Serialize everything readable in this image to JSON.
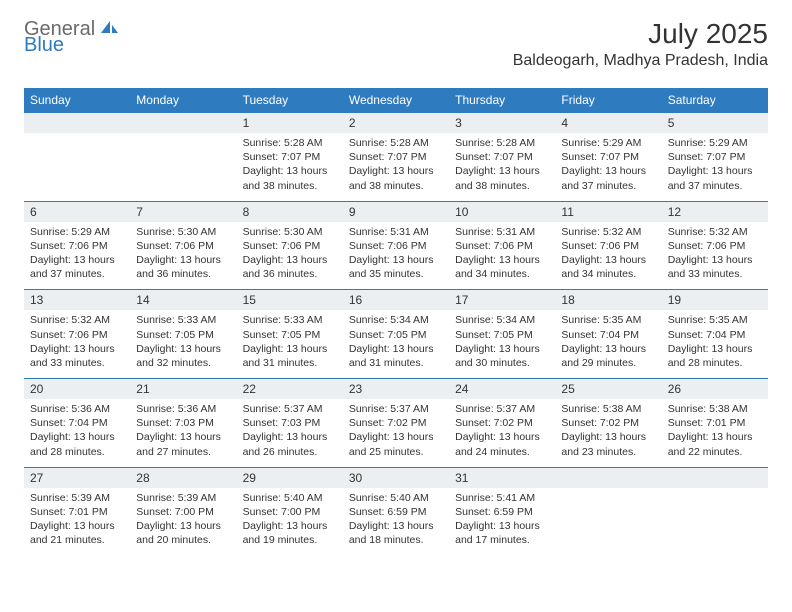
{
  "logo": {
    "general": "General",
    "blue": "Blue"
  },
  "title": "July 2025",
  "location": "Baldeogarh, Madhya Pradesh, India",
  "colors": {
    "brand_blue": "#2f7bbf",
    "header_text": "#ffffff",
    "daynum_bg": "#eceff1",
    "text": "#333333",
    "logo_gray": "#6a6a6a"
  },
  "day_headers": [
    "Sunday",
    "Monday",
    "Tuesday",
    "Wednesday",
    "Thursday",
    "Friday",
    "Saturday"
  ],
  "weeks": [
    {
      "nums": [
        "",
        "",
        "1",
        "2",
        "3",
        "4",
        "5"
      ],
      "details": [
        "",
        "",
        "Sunrise: 5:28 AM\nSunset: 7:07 PM\nDaylight: 13 hours and 38 minutes.",
        "Sunrise: 5:28 AM\nSunset: 7:07 PM\nDaylight: 13 hours and 38 minutes.",
        "Sunrise: 5:28 AM\nSunset: 7:07 PM\nDaylight: 13 hours and 38 minutes.",
        "Sunrise: 5:29 AM\nSunset: 7:07 PM\nDaylight: 13 hours and 37 minutes.",
        "Sunrise: 5:29 AM\nSunset: 7:07 PM\nDaylight: 13 hours and 37 minutes."
      ]
    },
    {
      "nums": [
        "6",
        "7",
        "8",
        "9",
        "10",
        "11",
        "12"
      ],
      "details": [
        "Sunrise: 5:29 AM\nSunset: 7:06 PM\nDaylight: 13 hours and 37 minutes.",
        "Sunrise: 5:30 AM\nSunset: 7:06 PM\nDaylight: 13 hours and 36 minutes.",
        "Sunrise: 5:30 AM\nSunset: 7:06 PM\nDaylight: 13 hours and 36 minutes.",
        "Sunrise: 5:31 AM\nSunset: 7:06 PM\nDaylight: 13 hours and 35 minutes.",
        "Sunrise: 5:31 AM\nSunset: 7:06 PM\nDaylight: 13 hours and 34 minutes.",
        "Sunrise: 5:32 AM\nSunset: 7:06 PM\nDaylight: 13 hours and 34 minutes.",
        "Sunrise: 5:32 AM\nSunset: 7:06 PM\nDaylight: 13 hours and 33 minutes."
      ]
    },
    {
      "nums": [
        "13",
        "14",
        "15",
        "16",
        "17",
        "18",
        "19"
      ],
      "details": [
        "Sunrise: 5:32 AM\nSunset: 7:06 PM\nDaylight: 13 hours and 33 minutes.",
        "Sunrise: 5:33 AM\nSunset: 7:05 PM\nDaylight: 13 hours and 32 minutes.",
        "Sunrise: 5:33 AM\nSunset: 7:05 PM\nDaylight: 13 hours and 31 minutes.",
        "Sunrise: 5:34 AM\nSunset: 7:05 PM\nDaylight: 13 hours and 31 minutes.",
        "Sunrise: 5:34 AM\nSunset: 7:05 PM\nDaylight: 13 hours and 30 minutes.",
        "Sunrise: 5:35 AM\nSunset: 7:04 PM\nDaylight: 13 hours and 29 minutes.",
        "Sunrise: 5:35 AM\nSunset: 7:04 PM\nDaylight: 13 hours and 28 minutes."
      ]
    },
    {
      "nums": [
        "20",
        "21",
        "22",
        "23",
        "24",
        "25",
        "26"
      ],
      "details": [
        "Sunrise: 5:36 AM\nSunset: 7:04 PM\nDaylight: 13 hours and 28 minutes.",
        "Sunrise: 5:36 AM\nSunset: 7:03 PM\nDaylight: 13 hours and 27 minutes.",
        "Sunrise: 5:37 AM\nSunset: 7:03 PM\nDaylight: 13 hours and 26 minutes.",
        "Sunrise: 5:37 AM\nSunset: 7:02 PM\nDaylight: 13 hours and 25 minutes.",
        "Sunrise: 5:37 AM\nSunset: 7:02 PM\nDaylight: 13 hours and 24 minutes.",
        "Sunrise: 5:38 AM\nSunset: 7:02 PM\nDaylight: 13 hours and 23 minutes.",
        "Sunrise: 5:38 AM\nSunset: 7:01 PM\nDaylight: 13 hours and 22 minutes."
      ]
    },
    {
      "nums": [
        "27",
        "28",
        "29",
        "30",
        "31",
        "",
        ""
      ],
      "details": [
        "Sunrise: 5:39 AM\nSunset: 7:01 PM\nDaylight: 13 hours and 21 minutes.",
        "Sunrise: 5:39 AM\nSunset: 7:00 PM\nDaylight: 13 hours and 20 minutes.",
        "Sunrise: 5:40 AM\nSunset: 7:00 PM\nDaylight: 13 hours and 19 minutes.",
        "Sunrise: 5:40 AM\nSunset: 6:59 PM\nDaylight: 13 hours and 18 minutes.",
        "Sunrise: 5:41 AM\nSunset: 6:59 PM\nDaylight: 13 hours and 17 minutes.",
        "",
        ""
      ]
    }
  ]
}
